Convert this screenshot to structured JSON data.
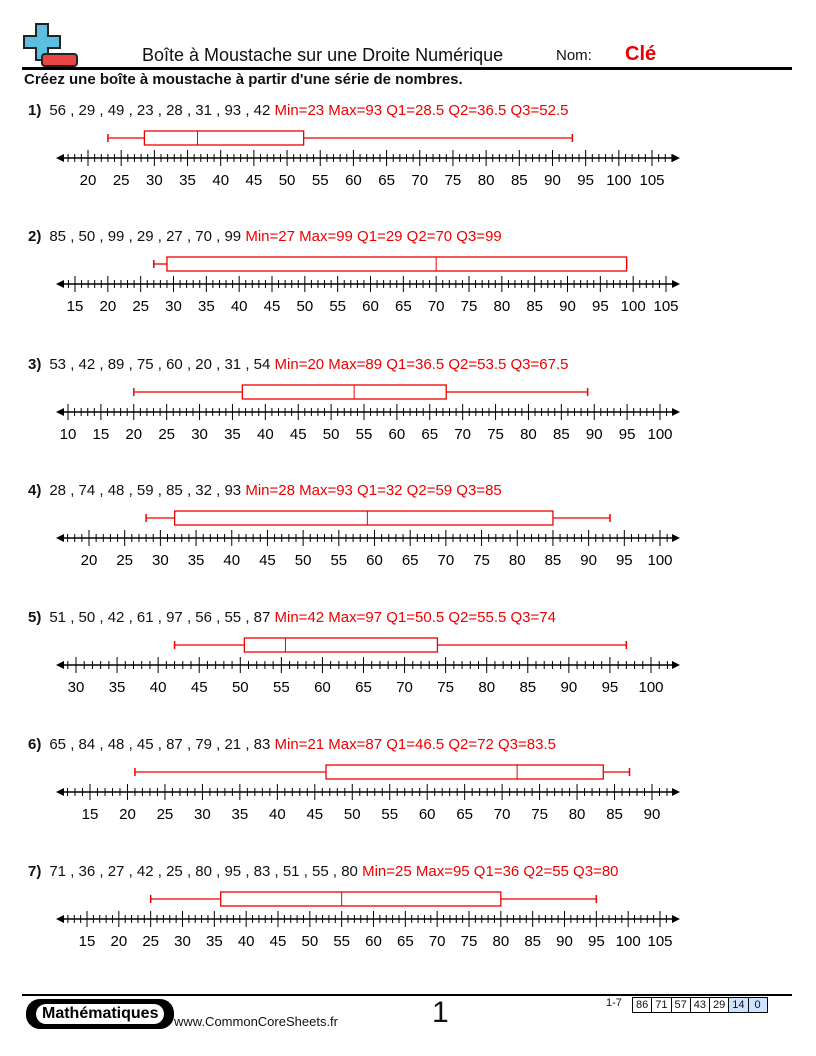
{
  "header": {
    "title": "Boîte à Moustache sur une Droite Numérique",
    "name_label": "Nom:",
    "name_value": "Clé",
    "logo_icon": "plus-minus-logo-icon"
  },
  "instructions": "Créez une boîte à moustache à partir d'une série de nombres.",
  "colors": {
    "answer": "#ee0000",
    "logo_blue": "#5bbfe0",
    "logo_red": "#e84545"
  },
  "problems": [
    {
      "number": "1)",
      "data": "56 , 29 , 49 , 23 , 28 , 31 , 93 , 42",
      "answer": "Min=23 Max=93 Q1=28.5 Q2=36.5 Q3=52.5",
      "min": 23,
      "max": 93,
      "q1": 28.5,
      "q2": 36.5,
      "q3": 52.5,
      "axis_labels": [
        20,
        25,
        30,
        35,
        40,
        45,
        50,
        55,
        60,
        65,
        70,
        75,
        80,
        85,
        90,
        95,
        100,
        105
      ]
    },
    {
      "number": "2)",
      "data": "85 , 50 , 99 , 29 , 27 , 70 , 99",
      "answer": "Min=27 Max=99 Q1=29 Q2=70 Q3=99",
      "min": 27,
      "max": 99,
      "q1": 29,
      "q2": 70,
      "q3": 99,
      "axis_labels": [
        15,
        20,
        25,
        30,
        35,
        40,
        45,
        50,
        55,
        60,
        65,
        70,
        75,
        80,
        85,
        90,
        95,
        100,
        105
      ]
    },
    {
      "number": "3)",
      "data": "53 , 42 , 89 , 75 , 60 , 20 , 31 , 54",
      "answer": "Min=20 Max=89 Q1=36.5 Q2=53.5 Q3=67.5",
      "min": 20,
      "max": 89,
      "q1": 36.5,
      "q2": 53.5,
      "q3": 67.5,
      "axis_labels": [
        10,
        15,
        20,
        25,
        30,
        35,
        40,
        45,
        50,
        55,
        60,
        65,
        70,
        75,
        80,
        85,
        90,
        95,
        100
      ]
    },
    {
      "number": "4)",
      "data": "28 , 74 , 48 , 59 , 85 , 32 , 93",
      "answer": "Min=28 Max=93 Q1=32 Q2=59 Q3=85",
      "min": 28,
      "max": 93,
      "q1": 32,
      "q2": 59,
      "q3": 85,
      "axis_labels": [
        20,
        25,
        30,
        35,
        40,
        45,
        50,
        55,
        60,
        65,
        70,
        75,
        80,
        85,
        90,
        95,
        100
      ]
    },
    {
      "number": "5)",
      "data": "51 , 50 , 42 , 61 , 97 , 56 , 55 , 87",
      "answer": "Min=42 Max=97 Q1=50.5 Q2=55.5 Q3=74",
      "min": 42,
      "max": 97,
      "q1": 50.5,
      "q2": 55.5,
      "q3": 74,
      "axis_labels": [
        30,
        35,
        40,
        45,
        50,
        55,
        60,
        65,
        70,
        75,
        80,
        85,
        90,
        95,
        100
      ]
    },
    {
      "number": "6)",
      "data": "65 , 84 , 48 , 45 , 87 , 79 , 21 , 83",
      "answer": "Min=21 Max=87 Q1=46.5 Q2=72 Q3=83.5",
      "min": 21,
      "max": 87,
      "q1": 46.5,
      "q2": 72,
      "q3": 83.5,
      "axis_labels": [
        15,
        20,
        25,
        30,
        35,
        40,
        45,
        50,
        55,
        60,
        65,
        70,
        75,
        80,
        85,
        90
      ]
    },
    {
      "number": "7)",
      "data": "71 , 36 , 27 , 42 , 25 , 80 , 95 , 83 , 51 , 55 , 80",
      "answer": "Min=25 Max=95 Q1=36 Q2=55 Q3=80",
      "min": 25,
      "max": 95,
      "q1": 36,
      "q2": 55,
      "q3": 80,
      "axis_labels": [
        15,
        20,
        25,
        30,
        35,
        40,
        45,
        50,
        55,
        60,
        65,
        70,
        75,
        80,
        85,
        90,
        95,
        100,
        105
      ]
    }
  ],
  "footer": {
    "brand": "Mathématiques",
    "site": "www.CommonCoreSheets.fr",
    "page": "1",
    "range": "1-7",
    "scores": [
      "86",
      "71",
      "57",
      "43",
      "29",
      "14",
      "0"
    ]
  }
}
